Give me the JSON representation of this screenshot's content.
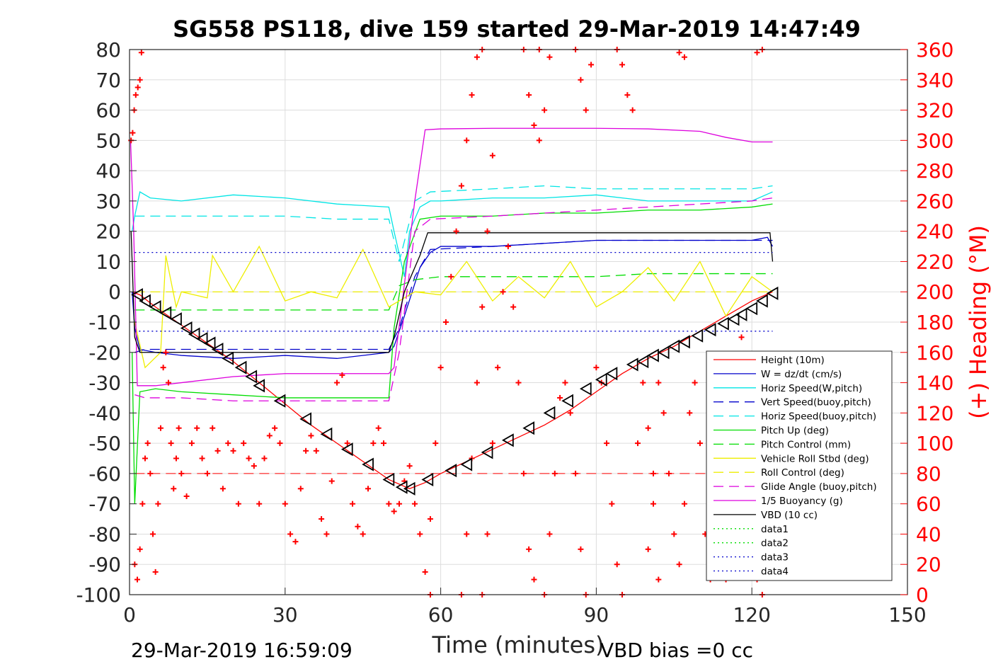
{
  "figure": {
    "title": "SG558 PS118, dive 159 started 29-Mar-2019 14:47:49",
    "footer_left": "29-Mar-2019 16:59:09",
    "footer_right": "VBD bias =0 cc"
  },
  "chart_data": {
    "type": "line",
    "title": "SG558 PS118, dive 159 started 29-Mar-2019 14:47:49",
    "xlabel": "Time (minutes)",
    "ylabel": "",
    "y2label": "(+) Heading (°M)",
    "xlim": [
      0,
      150
    ],
    "ylim": [
      -100,
      80
    ],
    "y2lim": [
      0,
      360
    ],
    "xticks": [
      0,
      30,
      60,
      90,
      120,
      150
    ],
    "yticks": [
      -100,
      -90,
      -80,
      -70,
      -60,
      -50,
      -40,
      -30,
      -20,
      -10,
      0,
      10,
      20,
      30,
      40,
      50,
      60,
      70,
      80
    ],
    "y2ticks": [
      0,
      20,
      40,
      60,
      80,
      100,
      120,
      140,
      160,
      180,
      200,
      220,
      240,
      260,
      280,
      300,
      320,
      340,
      360
    ],
    "grid": true,
    "legend_position": "lower-right",
    "colors": {
      "red": "#ff0000",
      "blue": "#0000cc",
      "cyan": "#00e5e5",
      "green": "#00dd00",
      "yellow": "#eeee00",
      "magenta": "#dd00dd",
      "black": "#000000",
      "axis": "#262626",
      "grid": "#dddddd"
    },
    "series": [
      {
        "name": "Height (10m)",
        "color": "#ff0000",
        "style": "solid",
        "x": [
          0.5,
          2,
          5,
          10,
          15,
          20,
          25,
          30,
          35,
          40,
          45,
          50,
          54,
          57,
          60,
          65,
          70,
          75,
          80,
          85,
          90,
          95,
          100,
          105,
          110,
          115,
          120,
          124
        ],
        "y": [
          0,
          -1,
          -5,
          -11,
          -17,
          -23,
          -30,
          -37,
          -44,
          -50,
          -56,
          -62,
          -65,
          -63,
          -60,
          -56,
          -52,
          -48,
          -44,
          -39,
          -33,
          -27,
          -22,
          -18,
          -13,
          -8,
          -3,
          0
        ]
      },
      {
        "name": "W = dz/dt (cm/s)",
        "color": "#0000cc",
        "style": "solid",
        "x": [
          0.5,
          1,
          2,
          5,
          10,
          20,
          30,
          40,
          50,
          51,
          53,
          56,
          58,
          60,
          70,
          80,
          90,
          100,
          110,
          120,
          123,
          124
        ],
        "y": [
          0,
          -12,
          -19,
          -20,
          -21,
          -22,
          -21,
          -22,
          -20,
          -18,
          -8,
          8,
          13,
          15,
          15,
          16,
          17,
          17,
          17,
          17,
          18,
          15
        ]
      },
      {
        "name": "Horiz Speed(W,pitch)",
        "color": "#00e5e5",
        "style": "solid",
        "x": [
          0.5,
          1,
          2,
          4,
          10,
          20,
          30,
          40,
          50,
          51,
          53,
          54,
          56,
          58,
          60,
          70,
          80,
          90,
          100,
          110,
          120,
          124
        ],
        "y": [
          20,
          25,
          33,
          31,
          30,
          32,
          31,
          29,
          28,
          20,
          5,
          20,
          28,
          30,
          30,
          31,
          31,
          32,
          30,
          30,
          30,
          33
        ]
      },
      {
        "name": "Vert Speed(buoy,pitch)",
        "color": "#0000cc",
        "style": "dashed",
        "x": [
          1,
          3,
          10,
          20,
          30,
          40,
          50,
          52,
          55,
          58,
          70,
          80,
          90,
          100,
          110,
          120,
          124
        ],
        "y": [
          -20,
          -19,
          -19,
          -19,
          -19,
          -19,
          -19,
          -12,
          5,
          14,
          15,
          16,
          17,
          17,
          17,
          17,
          17
        ]
      },
      {
        "name": "Horiz Speed(buoy,pitch)",
        "color": "#00e5e5",
        "style": "dashed",
        "x": [
          1,
          3,
          10,
          20,
          30,
          40,
          50,
          52,
          55,
          58,
          70,
          80,
          90,
          100,
          110,
          120,
          124
        ],
        "y": [
          25,
          25,
          25,
          25,
          25,
          24,
          24,
          10,
          30,
          33,
          34,
          35,
          34,
          34,
          34,
          34,
          35
        ]
      },
      {
        "name": "Pitch Up (deg)",
        "color": "#00dd00",
        "style": "solid",
        "x": [
          0.5,
          1,
          2,
          5,
          10,
          20,
          30,
          40,
          50,
          51,
          53,
          56,
          60,
          70,
          80,
          90,
          100,
          110,
          120,
          124
        ],
        "y": [
          -20,
          -70,
          -33,
          -32,
          -33,
          -34,
          -35,
          -35,
          -35,
          -12,
          10,
          24,
          25,
          25,
          26,
          26,
          27,
          27,
          28,
          29
        ]
      },
      {
        "name": "Pitch Control (mm)",
        "color": "#00dd00",
        "style": "dashed",
        "x": [
          1,
          2,
          10,
          20,
          30,
          40,
          50,
          52,
          55,
          60,
          70,
          80,
          90,
          100,
          110,
          120,
          124
        ],
        "y": [
          -6,
          -6,
          -6,
          -6,
          -6,
          -6,
          -6,
          2,
          4,
          5,
          5,
          5,
          5,
          6,
          6,
          6,
          6
        ]
      },
      {
        "name": "Vehicle Roll Stbd (deg)",
        "color": "#eeee00",
        "style": "solid",
        "x": [
          1,
          3,
          6,
          7,
          9,
          10,
          15,
          16,
          20,
          25,
          30,
          35,
          40,
          45,
          50,
          55,
          60,
          65,
          70,
          75,
          80,
          85,
          90,
          95,
          100,
          105,
          110,
          115,
          120,
          124
        ],
        "y": [
          -10,
          -25,
          -20,
          12,
          -5,
          0,
          -2,
          12,
          0,
          15,
          -3,
          0,
          -2,
          14,
          -5,
          0,
          -1,
          10,
          -3,
          5,
          -2,
          10,
          -5,
          0,
          8,
          -3,
          10,
          -8,
          5,
          0
        ]
      },
      {
        "name": "Roll Control (deg)",
        "color": "#eeee00",
        "style": "dashed",
        "x": [
          1,
          124
        ],
        "y": [
          0,
          0
        ]
      },
      {
        "name": "Glide Angle (buoy,pitch)",
        "color": "#dd00dd",
        "style": "dashed",
        "x": [
          1,
          3,
          10,
          20,
          30,
          40,
          50,
          52,
          55,
          58,
          70,
          80,
          90,
          100,
          110,
          120,
          124
        ],
        "y": [
          -34,
          -35,
          -35,
          -36,
          -36,
          -36,
          -36,
          -20,
          20,
          24,
          25,
          26,
          27,
          28,
          29,
          30,
          31
        ]
      },
      {
        "name": "1/5 Buoyancy (g)",
        "color": "#dd00dd",
        "style": "solid",
        "x": [
          0.2,
          0.8,
          1.5,
          5,
          10,
          20,
          30,
          40,
          50,
          51,
          55,
          57,
          60,
          70,
          80,
          90,
          100,
          110,
          115,
          120,
          124
        ],
        "y": [
          50,
          20,
          -31,
          -31,
          -30,
          -28,
          -27,
          -27,
          -27,
          -25,
          30,
          53.5,
          53.8,
          54,
          54,
          54,
          53.8,
          53,
          51,
          49.5,
          49.5
        ]
      },
      {
        "name": "VBD (10 cc)",
        "color": "#000000",
        "style": "solid",
        "x": [
          0.3,
          1,
          2,
          10,
          20,
          30,
          40,
          50,
          51,
          53,
          56,
          57.5,
          60,
          80,
          100,
          120,
          123.5,
          124
        ],
        "y": [
          20,
          -15,
          -20,
          -20,
          -20,
          -20,
          -20,
          -20,
          -15,
          0,
          12,
          19.5,
          19.5,
          19.5,
          19.5,
          19.5,
          19.5,
          10
        ]
      },
      {
        "name": "data1",
        "color": "#00dd00",
        "style": "dotted",
        "x": [],
        "y": []
      },
      {
        "name": "data2",
        "color": "#00dd00",
        "style": "dotted",
        "x": [],
        "y": []
      },
      {
        "name": "data3",
        "color": "#0000cc",
        "style": "dotted",
        "x": [
          1,
          124
        ],
        "y": [
          13,
          13
        ]
      },
      {
        "name": "data4",
        "color": "#0000cc",
        "style": "dotted",
        "x": [
          1,
          124
        ],
        "y": [
          -13,
          -13
        ]
      }
    ],
    "reference_lines": [
      {
        "color": "#ff0000",
        "style": "dashed",
        "x": [
          1,
          124
        ],
        "y": [
          -60,
          -60
        ]
      }
    ],
    "triangle_markers": {
      "color": "#000000",
      "x": [
        1.5,
        3,
        5,
        7,
        9,
        11,
        12.5,
        14,
        15.5,
        17,
        19,
        21.5,
        23.5,
        25,
        29,
        34,
        38,
        42,
        46,
        50,
        52.5,
        54,
        57.5,
        62,
        65,
        69,
        73,
        77,
        81,
        84.5,
        88,
        91,
        93,
        97,
        99,
        101,
        103,
        105,
        107,
        109.5,
        112,
        114.5,
        116.5,
        118,
        120,
        122,
        124
      ],
      "y": [
        -1,
        -3,
        -5,
        -7,
        -9,
        -12,
        -14,
        -15.5,
        -17,
        -19,
        -22,
        -25,
        -28,
        -31,
        -36,
        -42,
        -47,
        -52,
        -57,
        -62,
        -64.5,
        -65,
        -62,
        -59,
        -57,
        -53,
        -49,
        -45,
        -40,
        -36,
        -32,
        -29,
        -27,
        -24,
        -23,
        -21,
        -20,
        -18,
        -16.5,
        -14.5,
        -12.5,
        -10.5,
        -9,
        -7.5,
        -5.5,
        -3,
        -0.5
      ]
    },
    "heading": {
      "name": "(+) Heading (°M)",
      "marker": "+",
      "color": "#ff0000",
      "axis": "right",
      "segments": [
        {
          "x": [
            0.3,
            0.6,
            0.9,
            1.2,
            1.6,
            2.0,
            2.3
          ],
          "y": [
            300,
            305,
            320,
            330,
            335,
            340,
            358
          ]
        },
        {
          "x": [
            1.0,
            1.5,
            2.0,
            2.5,
            3.0,
            3.5,
            4.0,
            4.5,
            5.0,
            5.5,
            6.0,
            6.5,
            7.0,
            7.5,
            8.0,
            8.5,
            9.0,
            9.5,
            10.0,
            11.0,
            12.0,
            13.0,
            14.0,
            15.0,
            16.0,
            17.0,
            18.0,
            19.0,
            20.0,
            21.0,
            22.0,
            23.0,
            24.0,
            25.0,
            26.0,
            27.0,
            28.0,
            29.0,
            30.0,
            31.0,
            32.0,
            33.0,
            34.0,
            35.0,
            36.0,
            37.0,
            38.0,
            39.0,
            40.0,
            41.0,
            42.0,
            43.0,
            44.0,
            45.0,
            46.0,
            47.0,
            48.0,
            49.0,
            50.0,
            51.0,
            52.0,
            53.0,
            54.0,
            55.0,
            56.0,
            57.0,
            58.0
          ],
          "y": [
            20,
            10,
            30,
            60,
            90,
            100,
            80,
            40,
            15,
            60,
            110,
            150,
            160,
            140,
            100,
            70,
            90,
            110,
            80,
            65,
            100,
            110,
            90,
            80,
            110,
            95,
            70,
            100,
            95,
            60,
            100,
            90,
            85,
            60,
            90,
            105,
            110,
            100,
            60,
            40,
            35,
            70,
            95,
            105,
            95,
            50,
            40,
            75,
            140,
            145,
            100,
            60,
            45,
            40,
            70,
            100,
            110,
            100,
            60,
            55,
            60,
            75,
            85,
            60,
            40,
            15,
            0
          ]
        },
        {
          "x": [
            58,
            59,
            60,
            61,
            62,
            63,
            64,
            65,
            66,
            67,
            68
          ],
          "y": [
            50,
            100,
            150,
            180,
            210,
            240,
            270,
            300,
            330,
            355,
            360
          ]
        },
        {
          "x": [
            64,
            65,
            66,
            67,
            68,
            69,
            70
          ],
          "y": [
            0,
            40,
            90,
            140,
            190,
            240,
            290
          ]
        },
        {
          "x": [
            68,
            69,
            70,
            71,
            72,
            73,
            74,
            75,
            76,
            77,
            78,
            79
          ],
          "y": [
            0,
            40,
            100,
            150,
            200,
            230,
            190,
            140,
            80,
            30,
            10,
            360
          ]
        },
        {
          "x": [
            76,
            77,
            78,
            79,
            80,
            81
          ],
          "y": [
            360,
            330,
            310,
            300,
            320,
            355
          ]
        },
        {
          "x": [
            80,
            81,
            82,
            83,
            84,
            85,
            86,
            87,
            88
          ],
          "y": [
            0,
            40,
            80,
            130,
            140,
            120,
            80,
            30,
            0
          ]
        },
        {
          "x": [
            86,
            87,
            88,
            89,
            90,
            91,
            92,
            93,
            94,
            95
          ],
          "y": [
            360,
            340,
            320,
            350,
            150,
            140,
            100,
            60,
            20,
            0
          ]
        },
        {
          "x": [
            94,
            95,
            96,
            97,
            98,
            99,
            100,
            101,
            102
          ],
          "y": [
            360,
            350,
            330,
            320,
            100,
            140,
            110,
            60,
            10
          ]
        },
        {
          "x": [
            100,
            101,
            102,
            103,
            104,
            105,
            106,
            107,
            108,
            109,
            110,
            111,
            112
          ],
          "y": [
            30,
            80,
            140,
            120,
            80,
            40,
            20,
            60,
            120,
            140,
            100,
            40,
            10
          ]
        },
        {
          "x": [
            106,
            107
          ],
          "y": [
            358,
            355
          ]
        },
        {
          "x": [
            113,
            114,
            115,
            116,
            117,
            118,
            119,
            120,
            121,
            122
          ],
          "y": [
            80,
            40,
            10,
            60,
            150,
            170,
            120,
            60,
            10,
            0
          ]
        },
        {
          "x": [
            121,
            122
          ],
          "y": [
            358,
            360
          ]
        }
      ]
    }
  }
}
